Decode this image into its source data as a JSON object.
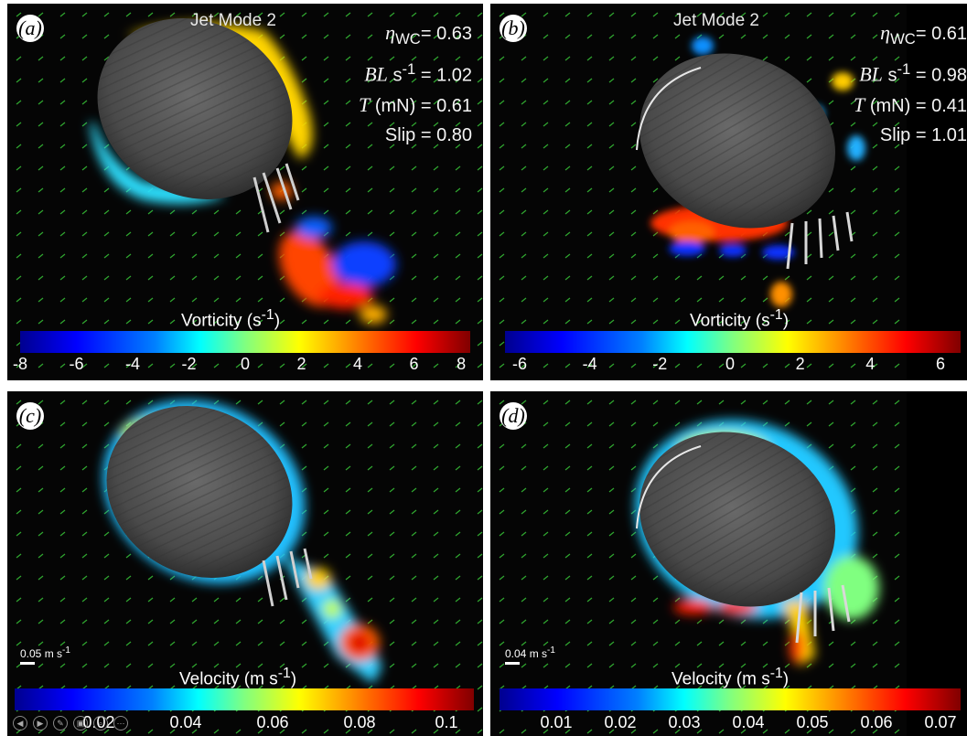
{
  "colormap": [
    "#00008f",
    "#0000ff",
    "#0080ff",
    "#00ffff",
    "#80ff80",
    "#ffff00",
    "#ff8000",
    "#ff0000",
    "#800000"
  ],
  "panels": {
    "a": {
      "label": "(a)",
      "title": "Jet Mode 2",
      "stats": {
        "eta_symbol": "η",
        "eta_sub": "WC",
        "eta_value": "= 0.63",
        "bl_symbol": "BL",
        "bl_unit": " s",
        "bl_exp": "-1",
        "bl_value": " = 1.02",
        "t_symbol": "T",
        "t_unit": " (mN)",
        "t_value": " = 0.61",
        "slip_label": "Slip",
        "slip_value": " = 0.80"
      },
      "colorbar_title": "Vorticity (s",
      "colorbar_title_exp": "-1",
      "colorbar_title_end": ")",
      "ticks": [
        "-8",
        "-6",
        "-4",
        "-2",
        "0",
        "2",
        "4",
        "6",
        "8"
      ]
    },
    "b": {
      "label": "(b)",
      "title": "Jet Mode 2",
      "stats": {
        "eta_symbol": "η",
        "eta_sub": "WC",
        "eta_value": "= 0.61",
        "bl_symbol": "BL",
        "bl_unit": " s",
        "bl_exp": "-1",
        "bl_value": " = 0.98",
        "t_symbol": "T",
        "t_unit": " (mN)",
        "t_value": " = 0.41",
        "slip_label": "Slip",
        "slip_value": " = 1.01"
      },
      "colorbar_title": "Vorticity (s",
      "colorbar_title_exp": "-1",
      "colorbar_title_end": ")",
      "ticks": [
        "-6",
        "-4",
        "-2",
        "0",
        "2",
        "4",
        "6"
      ]
    },
    "c": {
      "label": "(c)",
      "scale_label": "0.05 m s",
      "scale_exp": "-1",
      "colorbar_title": "Velocity (m s",
      "colorbar_title_exp": "-1",
      "colorbar_title_end": ")",
      "ticks": [
        "0.02",
        "0.04",
        "0.06",
        "0.08",
        "0.1"
      ]
    },
    "d": {
      "label": "(d)",
      "scale_label": "0.04 m s",
      "scale_exp": "-1",
      "colorbar_title": "Velocity (m s",
      "colorbar_title_exp": "-1",
      "colorbar_title_end": ")",
      "ticks": [
        "0.01",
        "0.02",
        "0.03",
        "0.04",
        "0.05",
        "0.06",
        "0.07"
      ]
    }
  },
  "player_controls": [
    "◀",
    "▶",
    "✎",
    "▣",
    "⌕",
    "⋯"
  ]
}
